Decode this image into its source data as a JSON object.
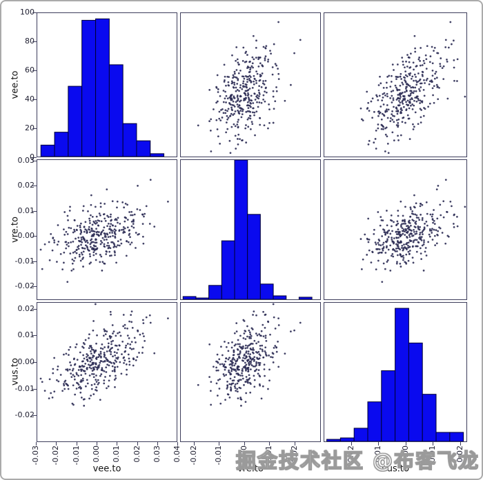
{
  "figure": {
    "kind": "scatter-matrix",
    "watermark": "掘金技术社区 @布客飞龙"
  },
  "colors": {
    "hist_fill": "#0a0aef",
    "hist_edge": "#000030",
    "point": "#2e2e55",
    "spine": "#3c3c5a",
    "tick_text": "#1c1c2e",
    "frame": "#aaaaaa",
    "watermark_fill": "#ffffff",
    "watermark_outline": "#9a9a9a"
  },
  "chart_data": {
    "type": "scatter",
    "subtype": "scatter_matrix",
    "grid": "off",
    "legend": "none",
    "variables": [
      {
        "name": "vee.to",
        "range": [
          -0.0297,
          0.0399
        ],
        "xticks": [
          -0.03,
          -0.02,
          -0.01,
          0,
          0.01,
          0.02,
          0.03,
          0.04
        ],
        "count_ticks": [
          0,
          20,
          40,
          60,
          80,
          100
        ],
        "count_max": 100,
        "hist": {
          "bin_start": -0.0279,
          "bin_width": 0.00683,
          "counts": [
            8,
            17,
            49,
            95,
            96,
            64,
            23,
            11,
            2
          ]
        }
      },
      {
        "name": "vre.to",
        "range": [
          -0.0255,
          0.0305
        ],
        "xticks": [
          -0.02,
          -0.01,
          0,
          0.01,
          0.02
        ],
        "yticks": [
          0.03,
          0.02,
          0.01,
          0,
          -0.01,
          -0.02
        ],
        "hist": {
          "bin_start": -0.0246,
          "bin_width": 0.00518,
          "rel_heights": [
            0.02,
            0.01,
            0.1,
            0.42,
            1.0,
            0.61,
            0.11,
            0.025,
            0,
            0.015
          ]
        }
      },
      {
        "name": "vus.to",
        "range": [
          -0.03,
          0.0225
        ],
        "xticks": [
          -0.02,
          -0.01,
          0,
          0.01,
          0.02
        ],
        "yticks": [
          0.02,
          0.01,
          0,
          -0.01,
          -0.02
        ],
        "hist": {
          "bin_start": -0.0291,
          "bin_width": 0.00505,
          "rel_heights": [
            0.015,
            0.025,
            0.095,
            0.285,
            0.51,
            0.96,
            0.71,
            0.34,
            0.065,
            0.065
          ]
        }
      }
    ],
    "scatter": {
      "n": 365,
      "seed": 11,
      "means": [
        0.0008,
        0.0005,
        0.0002
      ],
      "sds": [
        0.011,
        0.006,
        0.0071
      ],
      "loadings": [
        [
          1,
          0,
          0
        ],
        [
          0.38,
          0.925,
          0
        ],
        [
          0.58,
          0.2,
          0.79
        ]
      ],
      "point_radius": 1.4
    }
  }
}
